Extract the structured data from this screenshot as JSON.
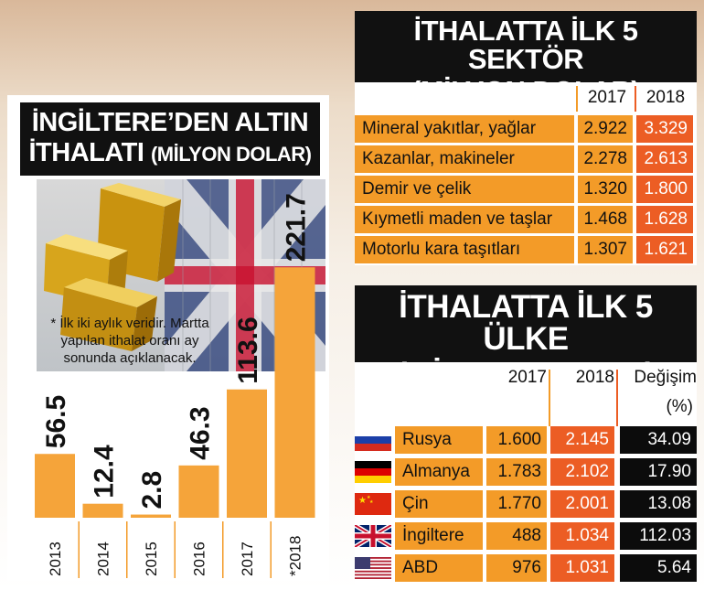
{
  "gold_chart": {
    "title_line1": "İNGİLTERE’DEN ALTIN",
    "title_line2": "İTHALATI",
    "title_unit": "(MİLYON DOLAR)",
    "footnote": "* İlk iki aylık veridir. Martta yapılan ithalat oranı ay sonunda açıklanacak.",
    "images": [
      "gold-bars-image",
      "uk-flag-image"
    ]
  },
  "chart_data": {
    "type": "bar",
    "title": "İNGİLTERE’DEN ALTIN İTHALATI (MİLYON DOLAR)",
    "categories": [
      "2013",
      "2014",
      "2015",
      "2016",
      "2017",
      "*2018"
    ],
    "values": [
      56.5,
      12.4,
      2.8,
      46.3,
      113.6,
      221.7
    ],
    "value_labels": [
      "56.5",
      "12.4",
      "2.8",
      "46.3",
      "113.6",
      "221.7"
    ],
    "ylim": [
      0,
      230
    ],
    "grid": false,
    "bar_color": "#f5a43a"
  },
  "sectors": {
    "title_line1": "İTHALATTA İLK 5 SEKTÖR",
    "title_line2": "(MİLYON DOLAR)",
    "col_2017": "2017",
    "col_2018": "2018",
    "rows": [
      {
        "name": "Mineral yakıtlar, yağlar",
        "v2017": "2.922",
        "v2018": "3.329"
      },
      {
        "name": "Kazanlar, makineler",
        "v2017": "2.278",
        "v2018": "2.613"
      },
      {
        "name": "Demir ve çelik",
        "v2017": "1.320",
        "v2018": "1.800"
      },
      {
        "name": "Kıymetli maden ve taşlar",
        "v2017": "1.468",
        "v2018": "1.628"
      },
      {
        "name": "Motorlu kara taşıtları",
        "v2017": "1.307",
        "v2018": "1.621"
      }
    ]
  },
  "countries": {
    "title_line1": "İTHALATTA İLK 5 ÜLKE",
    "title_line2": "(MİLYON DOLAR)",
    "col_2017": "2017",
    "col_2018": "2018",
    "col_change": "Değişim",
    "col_change_unit": "(%)",
    "rows": [
      {
        "flag": "russia-flag-icon",
        "name": "Rusya",
        "v2017": "1.600",
        "v2018": "2.145",
        "change": "34.09"
      },
      {
        "flag": "germany-flag-icon",
        "name": "Almanya",
        "v2017": "1.783",
        "v2018": "2.102",
        "change": "17.90"
      },
      {
        "flag": "china-flag-icon",
        "name": "Çin",
        "v2017": "1.770",
        "v2018": "2.001",
        "change": "13.08"
      },
      {
        "flag": "uk-flag-icon",
        "name": "İngiltere",
        "v2017": "488",
        "v2018": "1.034",
        "change": "112.03"
      },
      {
        "flag": "usa-flag-icon",
        "name": "ABD",
        "v2017": "976",
        "v2018": "1.031",
        "change": "5.64"
      }
    ]
  },
  "colors": {
    "orange": "#f39b28",
    "red_orange": "#ec5d24",
    "black": "#0c0c0c"
  }
}
